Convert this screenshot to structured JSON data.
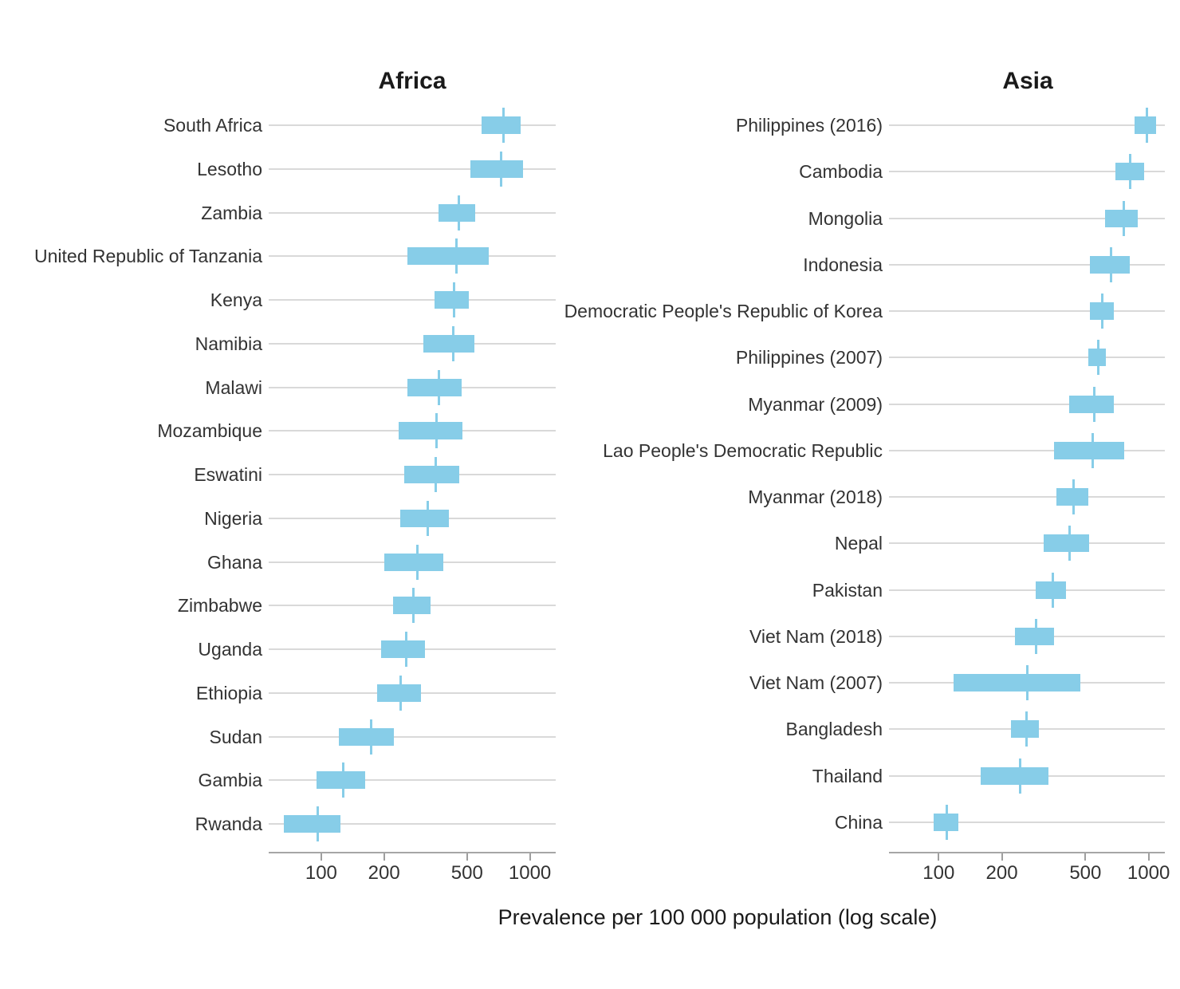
{
  "figure": {
    "xlabel": "Prevalence per 100 000 population (log scale)",
    "colors": {
      "bar_fill": "#87cde8",
      "gridline": "#d9d9d9",
      "axis_line": "#a6a6a6",
      "tick_mark": "#9e9e9e",
      "text": "#333333",
      "title_text": "#1a1a1a"
    }
  },
  "chart_data": [
    {
      "type": "bar",
      "style": "horizontal-crossbar-range",
      "title": "Africa",
      "xscale": "log10",
      "xlim": [
        56,
        1330
      ],
      "xticks": [
        100,
        200,
        500,
        1000
      ],
      "grid": "horizontal-major-only",
      "legend": "none",
      "categories": [
        "South Africa",
        "Lesotho",
        "Zambia",
        "United Republic of Tanzania",
        "Kenya",
        "Namibia",
        "Malawi",
        "Mozambique",
        "Eswatini",
        "Nigeria",
        "Ghana",
        "Zimbabwe",
        "Uganda",
        "Ethiopia",
        "Sudan",
        "Gambia",
        "Rwanda"
      ],
      "estimates": [
        750,
        725,
        455,
        445,
        435,
        430,
        365,
        358,
        355,
        325,
        290,
        277,
        255,
        240,
        174,
        128,
        96
      ],
      "ci_lower": [
        585,
        520,
        365,
        260,
        350,
        310,
        260,
        235,
        250,
        240,
        200,
        220,
        193,
        185,
        122,
        95,
        66
      ],
      "ci_upper": [
        900,
        930,
        545,
        635,
        510,
        540,
        470,
        475,
        460,
        410,
        385,
        335,
        315,
        300,
        222,
        162,
        124
      ]
    },
    {
      "type": "bar",
      "style": "horizontal-crossbar-range",
      "title": "Asia",
      "xscale": "log10",
      "xlim": [
        58,
        1195
      ],
      "xticks": [
        100,
        200,
        500,
        1000
      ],
      "grid": "horizontal-major-only",
      "legend": "none",
      "categories": [
        "Philippines (2016)",
        "Cambodia",
        "Mongolia",
        "Indonesia",
        "Democratic People's Republic of Korea",
        "Philippines (2007)",
        "Myanmar (2009)",
        "Lao People's Democratic Republic",
        "Myanmar (2018)",
        "Nepal",
        "Pakistan",
        "Viet Nam (2018)",
        "Viet Nam (2007)",
        "Bangladesh",
        "Thailand",
        "China"
      ],
      "estimates": [
        985,
        815,
        760,
        660,
        600,
        575,
        550,
        540,
        440,
        420,
        350,
        290,
        265,
        262,
        245,
        109
      ],
      "ci_lower": [
        860,
        695,
        620,
        525,
        525,
        515,
        420,
        355,
        365,
        315,
        290,
        230,
        118,
        221,
        158,
        95
      ],
      "ci_upper": [
        1090,
        955,
        890,
        810,
        685,
        625,
        685,
        765,
        515,
        520,
        405,
        355,
        475,
        301,
        333,
        124
      ]
    }
  ]
}
